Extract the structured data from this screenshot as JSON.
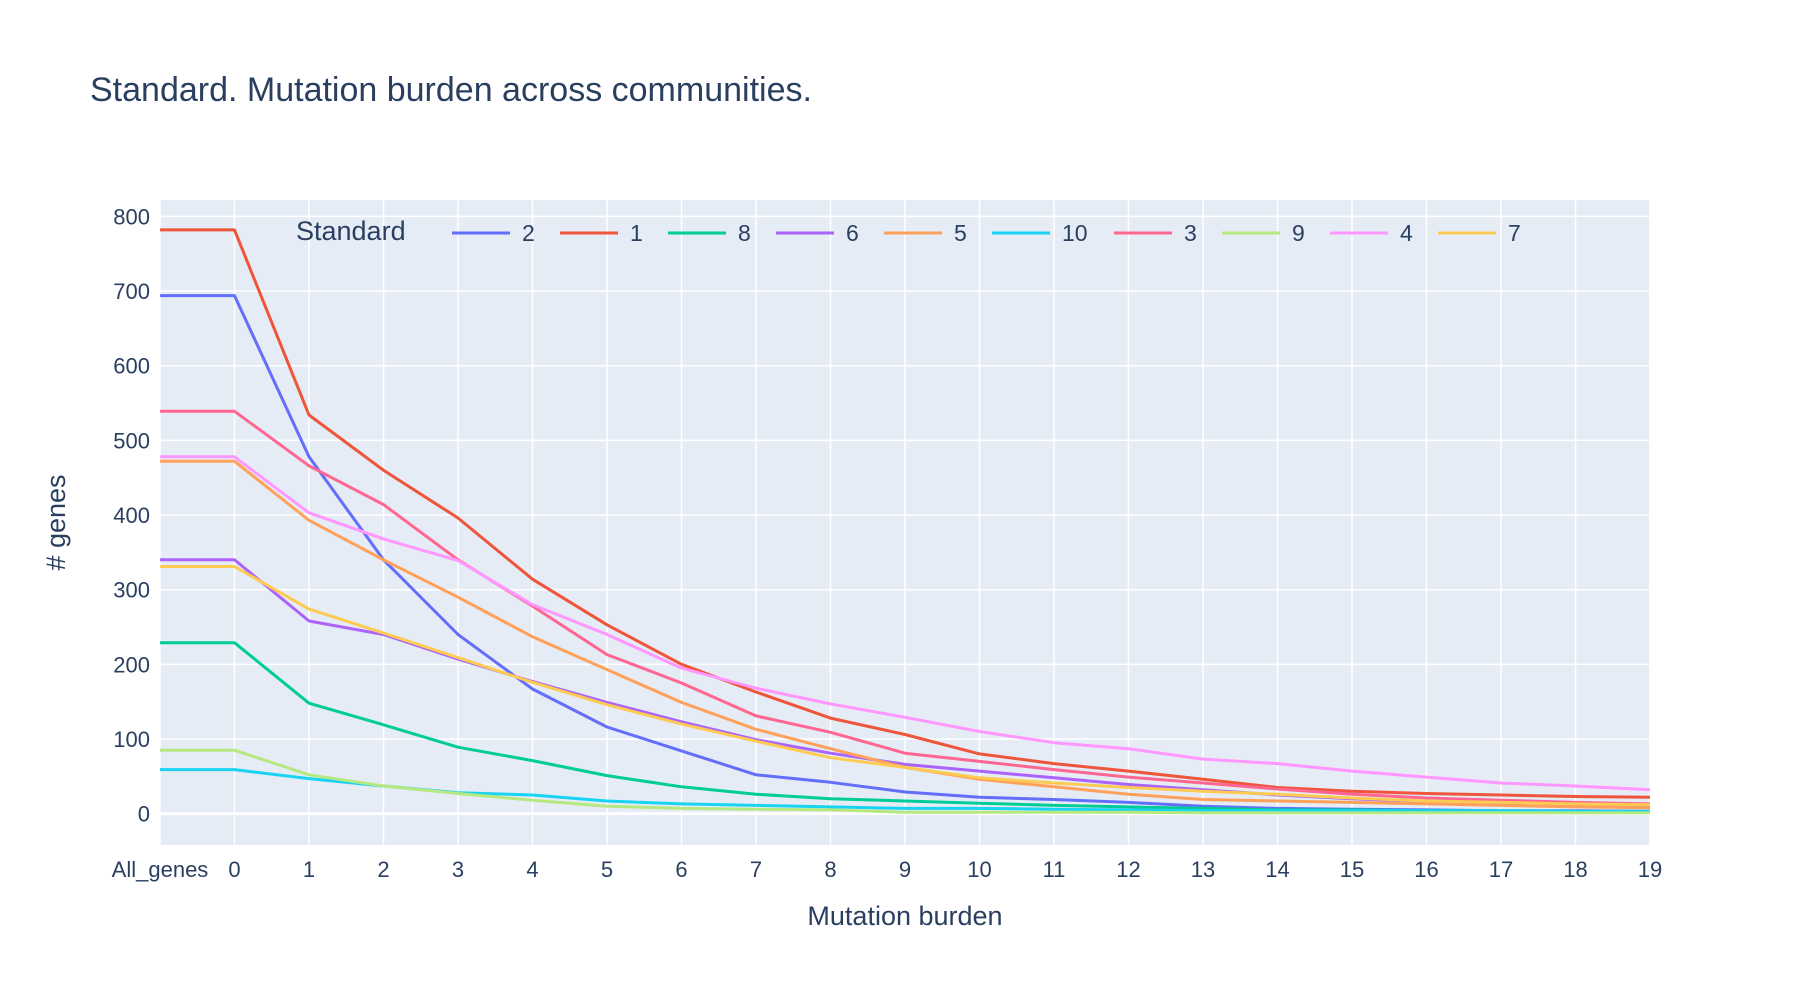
{
  "chart_data": {
    "type": "line",
    "title": "Standard. Mutation burden across communities.",
    "xlabel": "Mutation burden",
    "ylabel": "# genes",
    "x": [
      "All_genes",
      "0",
      "1",
      "2",
      "3",
      "4",
      "5",
      "6",
      "7",
      "8",
      "9",
      "10",
      "11",
      "12",
      "13",
      "14",
      "15",
      "16",
      "17",
      "18",
      "19"
    ],
    "ylim": [
      -42,
      822
    ],
    "yticks": [
      0,
      100,
      200,
      300,
      400,
      500,
      600,
      700,
      800
    ],
    "grid": true,
    "legend": {
      "title": "Standard",
      "placement": "top-left, horizontal, inside plot"
    },
    "series": [
      {
        "name": "2",
        "color": "#636efa",
        "values": [
          694,
          694,
          478,
          340,
          240,
          167,
          116,
          84,
          52,
          42,
          29,
          22,
          19,
          15,
          10,
          7,
          6,
          5,
          4,
          4,
          3
        ]
      },
      {
        "name": "1",
        "color": "#ef553b",
        "values": [
          782,
          782,
          534,
          460,
          396,
          314,
          253,
          200,
          163,
          128,
          106,
          80,
          67,
          57,
          46,
          35,
          30,
          27,
          25,
          23,
          22
        ]
      },
      {
        "name": "8",
        "color": "#00cc96",
        "values": [
          229,
          229,
          148,
          119,
          89,
          71,
          51,
          36,
          26,
          20,
          17,
          14,
          11,
          9,
          7,
          5,
          5,
          4,
          4,
          3,
          3
        ]
      },
      {
        "name": "6",
        "color": "#ab63fa",
        "values": [
          340,
          340,
          258,
          240,
          207,
          177,
          149,
          123,
          99,
          81,
          66,
          57,
          48,
          39,
          32,
          25,
          20,
          16,
          14,
          11,
          10
        ]
      },
      {
        "name": "5",
        "color": "#ffa15a",
        "values": [
          472,
          472,
          393,
          340,
          290,
          237,
          193,
          149,
          113,
          87,
          62,
          46,
          36,
          26,
          19,
          17,
          15,
          13,
          11,
          9,
          8
        ]
      },
      {
        "name": "10",
        "color": "#19d3f3",
        "values": [
          59,
          59,
          47,
          37,
          28,
          25,
          17,
          13,
          11,
          9,
          7,
          7,
          6,
          5,
          4,
          4,
          4,
          4,
          4,
          3,
          3
        ]
      },
      {
        "name": "3",
        "color": "#ff6692",
        "values": [
          539,
          539,
          466,
          414,
          340,
          278,
          213,
          175,
          131,
          109,
          81,
          70,
          59,
          49,
          41,
          33,
          26,
          21,
          18,
          15,
          13
        ]
      },
      {
        "name": "9",
        "color": "#b6e880",
        "values": [
          85,
          85,
          52,
          37,
          27,
          18,
          10,
          7,
          6,
          5,
          2,
          2,
          2,
          2,
          1,
          1,
          1,
          1,
          1,
          1,
          1
        ]
      },
      {
        "name": "4",
        "color": "#ff97ff",
        "values": [
          478,
          478,
          403,
          368,
          339,
          280,
          240,
          195,
          168,
          147,
          129,
          110,
          95,
          87,
          73,
          67,
          57,
          49,
          41,
          37,
          32
        ]
      },
      {
        "name": "7",
        "color": "#fecb52",
        "values": [
          331,
          331,
          274,
          242,
          209,
          176,
          146,
          120,
          97,
          75,
          62,
          48,
          41,
          35,
          30,
          26,
          21,
          17,
          15,
          13,
          12
        ]
      }
    ]
  }
}
